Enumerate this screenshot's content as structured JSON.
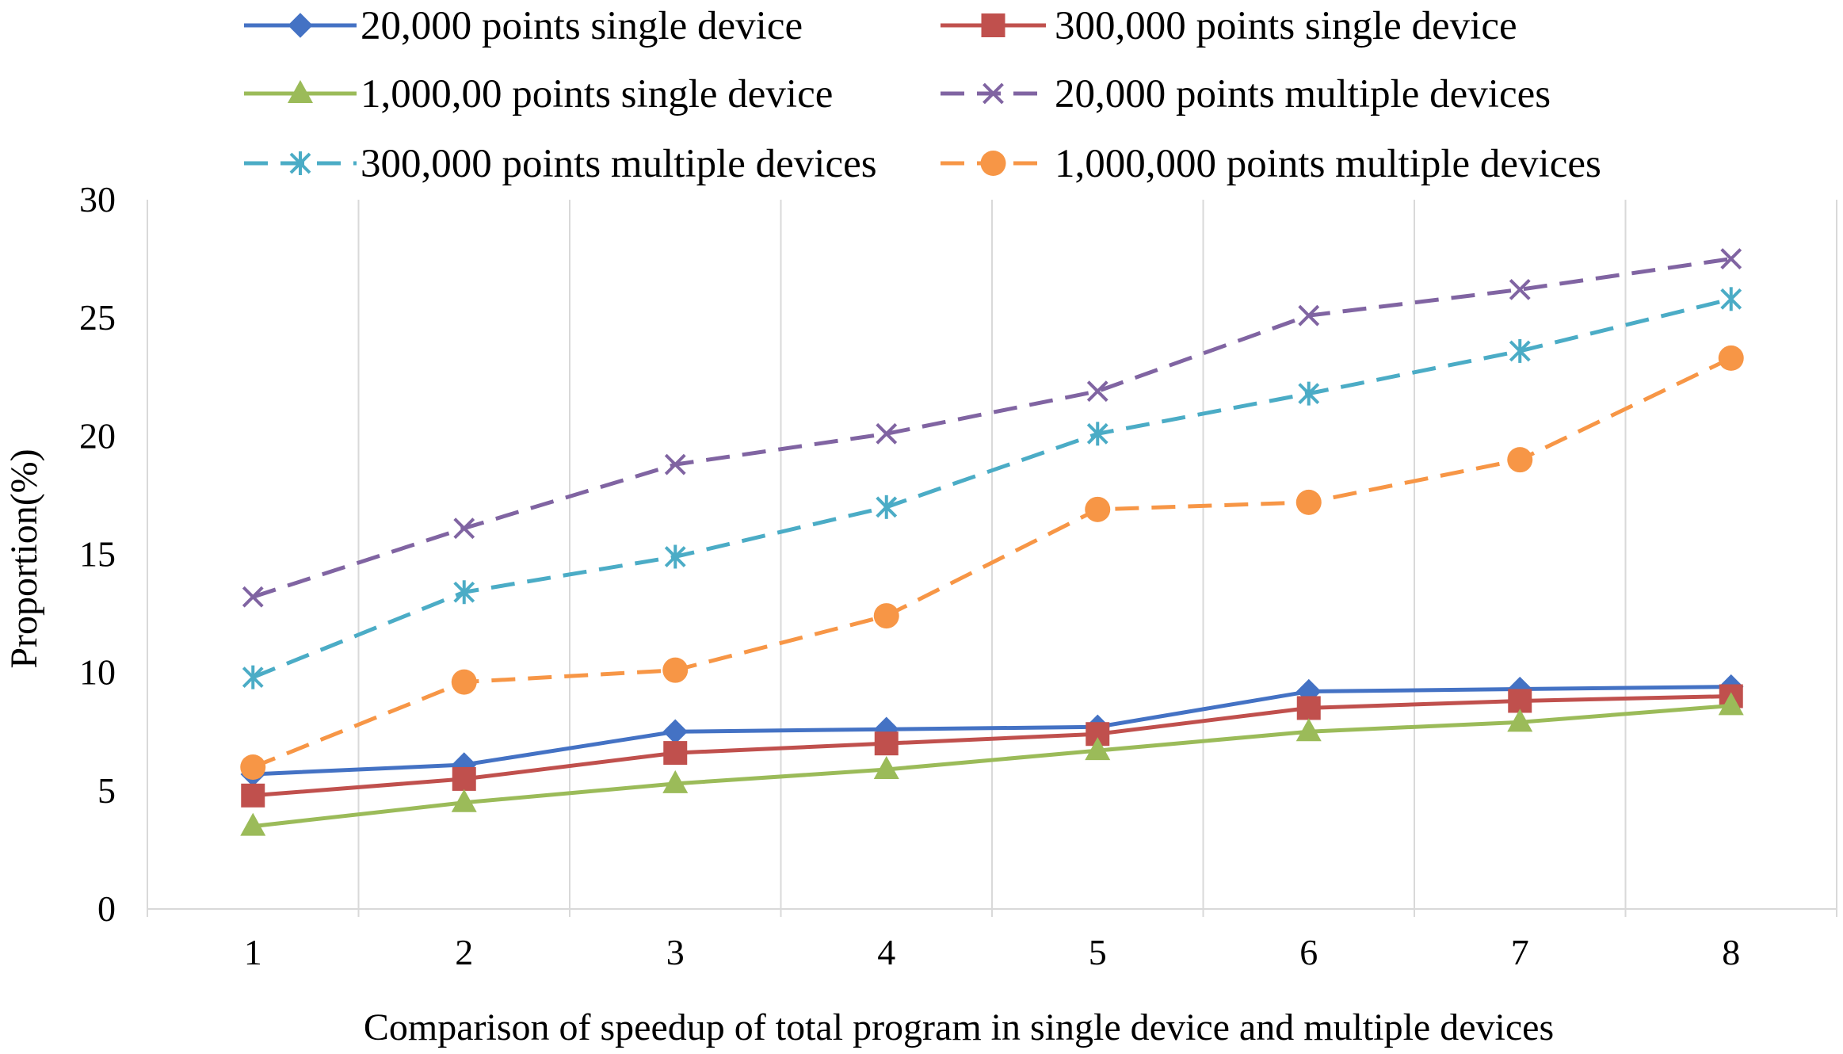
{
  "chart_data": {
    "type": "line",
    "title": "",
    "xlabel": "Comparison of speedup of total program in single device and multiple devices",
    "ylabel": "Proportion(%)",
    "categories": [
      "1",
      "2",
      "3",
      "4",
      "5",
      "6",
      "7",
      "8"
    ],
    "ylim": [
      0,
      30
    ],
    "yticks": [
      "0",
      "5",
      "10",
      "15",
      "20",
      "25",
      "30"
    ],
    "grid": "vertical",
    "legend_position": "top",
    "series": [
      {
        "name": "20,000 points single device",
        "color": "#4472c4",
        "marker": "diamond",
        "dash": "solid",
        "values": [
          5.7,
          6.1,
          7.5,
          7.6,
          7.7,
          9.2,
          9.3,
          9.4
        ]
      },
      {
        "name": "300,000 points single device",
        "color": "#c0504d",
        "marker": "square",
        "dash": "solid",
        "values": [
          4.8,
          5.5,
          6.6,
          7.0,
          7.4,
          8.5,
          8.8,
          9.0
        ]
      },
      {
        "name": "1,000,00 points single device",
        "color": "#9bbb59",
        "marker": "triangle",
        "dash": "solid",
        "values": [
          3.5,
          4.5,
          5.3,
          5.9,
          6.7,
          7.5,
          7.9,
          8.6
        ]
      },
      {
        "name": "20,000 points multiple devices",
        "color": "#8064a2",
        "marker": "x",
        "dash": "dashed",
        "values": [
          13.2,
          16.1,
          18.8,
          20.1,
          21.9,
          25.1,
          26.2,
          27.5
        ]
      },
      {
        "name": "300,000 points multiple devices",
        "color": "#4bacc6",
        "marker": "asterisk",
        "dash": "dashed",
        "values": [
          9.8,
          13.4,
          14.9,
          17.0,
          20.1,
          21.8,
          23.6,
          25.8
        ]
      },
      {
        "name": "1,000,000 points multiple devices",
        "color": "#f79646",
        "marker": "circle",
        "dash": "dashed",
        "values": [
          6.0,
          9.6,
          10.1,
          12.4,
          16.9,
          17.2,
          19.0,
          23.3
        ]
      }
    ]
  }
}
